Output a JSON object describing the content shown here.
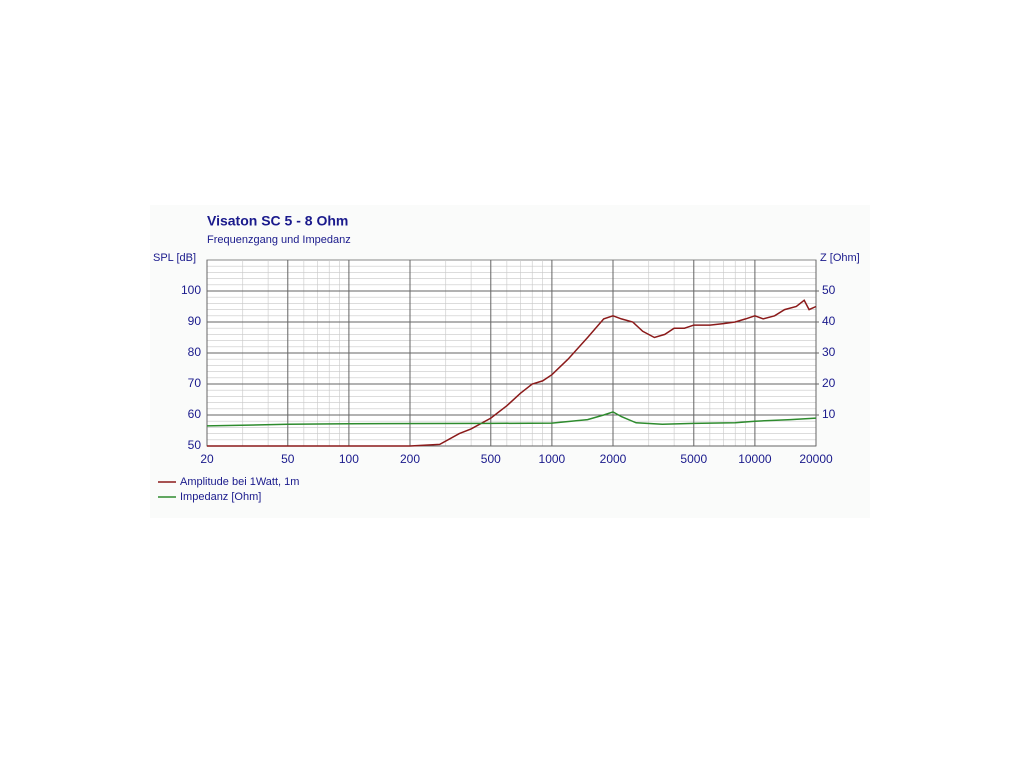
{
  "chart_data": {
    "type": "line",
    "title": "Visaton SC 5 - 8 Ohm",
    "subtitle": "Frequenzgang und Impedanz",
    "ylabel": "SPL [dB]",
    "y2label": "Z [Ohm]",
    "xscale": "log",
    "xlim": [
      20,
      20000
    ],
    "xticks": [
      20,
      50,
      100,
      200,
      500,
      1000,
      2000,
      5000,
      10000,
      20000
    ],
    "ylim": [
      50,
      110
    ],
    "yticks": [
      50,
      60,
      70,
      80,
      90,
      100
    ],
    "y2lim": [
      0,
      60
    ],
    "y2ticks": [
      10,
      20,
      30,
      40,
      50
    ],
    "grid": true,
    "minor_grid": true,
    "legend": "bottom-left",
    "series": [
      {
        "name": "Amplitude bei 1Watt, 1m",
        "color": "#8b1a1a",
        "x": [
          20,
          200,
          280,
          350,
          400,
          500,
          600,
          700,
          800,
          900,
          1000,
          1200,
          1500,
          1800,
          2000,
          2200,
          2500,
          2800,
          3200,
          3600,
          4000,
          4500,
          5000,
          6000,
          7000,
          8000,
          9000,
          10000,
          11000,
          12500,
          14000,
          16000,
          17500,
          18500,
          20000
        ],
        "values": [
          50,
          50,
          50.5,
          54,
          55.5,
          59,
          63,
          67,
          70,
          71,
          73,
          78,
          85,
          91,
          92,
          91,
          90,
          87,
          85,
          86,
          88,
          88,
          89,
          89,
          89.5,
          90,
          91,
          92,
          91,
          92,
          94,
          95,
          97,
          94,
          95
        ]
      },
      {
        "name": "Impedanz [Ohm]",
        "color": "#2e8b2e",
        "axis": "y2",
        "x": [
          20,
          50,
          100,
          500,
          1000,
          1500,
          1800,
          2000,
          2200,
          2600,
          3500,
          5000,
          8000,
          10000,
          15000,
          20000
        ],
        "values": [
          6.5,
          7,
          7.2,
          7.3,
          7.4,
          8.5,
          10,
          11,
          9.5,
          7.5,
          7,
          7.3,
          7.5,
          8,
          8.5,
          9
        ]
      }
    ]
  }
}
